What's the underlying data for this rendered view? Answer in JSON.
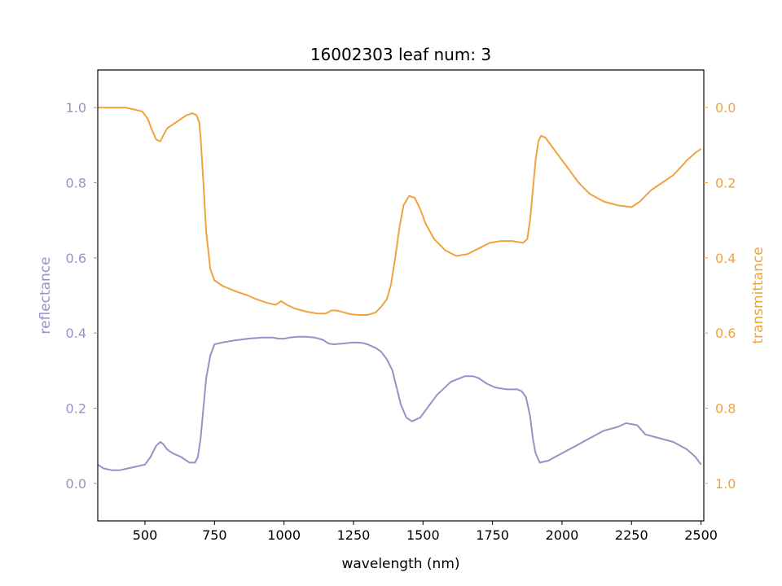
{
  "chart_data": {
    "type": "line",
    "title": "16002303 leaf num: 3",
    "xlabel": "wavelength (nm)",
    "ylabel_left": "reflectance",
    "ylabel_right": "transmittance",
    "xlim": [
      330,
      2510
    ],
    "ylim_left": [
      -0.1,
      1.1
    ],
    "ylim_right_inverted": [
      1.1,
      -0.1
    ],
    "x_ticks": [
      500,
      750,
      1000,
      1250,
      1500,
      1750,
      2000,
      2250,
      2500
    ],
    "x_tick_labels": [
      "500",
      "750",
      "1000",
      "1250",
      "1500",
      "1750",
      "2000",
      "2250",
      "2500"
    ],
    "left_ticks": [
      0.0,
      0.2,
      0.4,
      0.6,
      0.8,
      1.0
    ],
    "left_tick_labels": [
      "0.0",
      "0.2",
      "0.4",
      "0.6",
      "0.8",
      "1.0"
    ],
    "right_ticks": [
      0.0,
      0.2,
      0.4,
      0.6,
      0.8,
      1.0
    ],
    "right_tick_labels": [
      "0.0",
      "0.2",
      "0.4",
      "0.6",
      "0.8",
      "1.0"
    ],
    "grid": false,
    "colors": {
      "reflectance": "#9891c5",
      "transmittance": "#f0a33c"
    },
    "series": [
      {
        "name": "reflectance",
        "axis": "left",
        "x": [
          330,
          350,
          380,
          410,
          440,
          470,
          500,
          520,
          540,
          555,
          565,
          580,
          600,
          630,
          660,
          680,
          690,
          700,
          710,
          720,
          735,
          750,
          780,
          820,
          870,
          920,
          960,
          980,
          1000,
          1020,
          1050,
          1080,
          1110,
          1140,
          1160,
          1180,
          1210,
          1250,
          1280,
          1300,
          1330,
          1350,
          1370,
          1390,
          1400,
          1410,
          1420,
          1440,
          1460,
          1490,
          1520,
          1550,
          1600,
          1650,
          1680,
          1700,
          1730,
          1760,
          1800,
          1840,
          1855,
          1870,
          1885,
          1895,
          1905,
          1920,
          1950,
          2000,
          2050,
          2100,
          2150,
          2200,
          2230,
          2270,
          2300,
          2350,
          2400,
          2450,
          2480,
          2500
        ],
        "values": [
          0.05,
          0.04,
          0.035,
          0.035,
          0.04,
          0.045,
          0.05,
          0.07,
          0.1,
          0.11,
          0.105,
          0.09,
          0.08,
          0.07,
          0.055,
          0.055,
          0.07,
          0.12,
          0.2,
          0.28,
          0.34,
          0.37,
          0.375,
          0.38,
          0.385,
          0.388,
          0.388,
          0.385,
          0.385,
          0.388,
          0.39,
          0.39,
          0.388,
          0.382,
          0.372,
          0.37,
          0.372,
          0.375,
          0.374,
          0.37,
          0.36,
          0.35,
          0.33,
          0.3,
          0.27,
          0.24,
          0.21,
          0.175,
          0.165,
          0.175,
          0.205,
          0.235,
          0.27,
          0.285,
          0.285,
          0.28,
          0.265,
          0.255,
          0.25,
          0.25,
          0.245,
          0.23,
          0.18,
          0.12,
          0.08,
          0.055,
          0.06,
          0.08,
          0.1,
          0.12,
          0.14,
          0.15,
          0.16,
          0.155,
          0.13,
          0.12,
          0.11,
          0.09,
          0.07,
          0.05
        ]
      },
      {
        "name": "transmittance",
        "axis": "right",
        "x": [
          330,
          360,
          400,
          430,
          460,
          490,
          510,
          525,
          540,
          555,
          565,
          580,
          600,
          630,
          650,
          670,
          685,
          695,
          700,
          710,
          720,
          735,
          750,
          780,
          830,
          870,
          900,
          940,
          970,
          990,
          1010,
          1040,
          1080,
          1120,
          1150,
          1170,
          1190,
          1210,
          1240,
          1270,
          1300,
          1330,
          1350,
          1370,
          1385,
          1400,
          1415,
          1430,
          1450,
          1470,
          1490,
          1510,
          1540,
          1580,
          1620,
          1660,
          1700,
          1740,
          1780,
          1820,
          1860,
          1875,
          1885,
          1895,
          1905,
          1915,
          1925,
          1940,
          1960,
          1990,
          2020,
          2060,
          2100,
          2150,
          2200,
          2250,
          2280,
          2320,
          2360,
          2400,
          2450,
          2480,
          2500
        ],
        "values": [
          0.0,
          0.0,
          0.0,
          0.0,
          0.005,
          0.01,
          0.03,
          0.06,
          0.085,
          0.09,
          0.075,
          0.055,
          0.045,
          0.03,
          0.02,
          0.015,
          0.02,
          0.04,
          0.08,
          0.2,
          0.33,
          0.43,
          0.46,
          0.475,
          0.49,
          0.5,
          0.51,
          0.52,
          0.525,
          0.515,
          0.525,
          0.535,
          0.543,
          0.548,
          0.548,
          0.54,
          0.54,
          0.544,
          0.55,
          0.552,
          0.552,
          0.545,
          0.53,
          0.51,
          0.47,
          0.4,
          0.32,
          0.26,
          0.235,
          0.24,
          0.27,
          0.31,
          0.35,
          0.38,
          0.395,
          0.39,
          0.375,
          0.36,
          0.355,
          0.355,
          0.36,
          0.35,
          0.3,
          0.22,
          0.14,
          0.09,
          0.075,
          0.08,
          0.1,
          0.13,
          0.16,
          0.2,
          0.23,
          0.25,
          0.26,
          0.265,
          0.25,
          0.22,
          0.2,
          0.18,
          0.14,
          0.12,
          0.11
        ]
      }
    ]
  }
}
